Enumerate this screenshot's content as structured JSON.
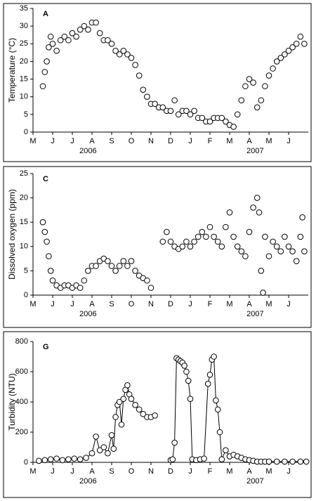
{
  "chart_data": [
    {
      "type": "line",
      "line": false,
      "panel_label": "A",
      "y_label": "Temperature (°C)",
      "x": [
        0.5,
        0.6,
        0.7,
        0.8,
        0.9,
        1.0,
        1.2,
        1.4,
        1.6,
        1.8,
        2.0,
        2.2,
        2.4,
        2.6,
        2.8,
        3.0,
        3.2,
        3.4,
        3.6,
        3.8,
        4.0,
        4.2,
        4.4,
        4.6,
        4.8,
        5.0,
        5.2,
        5.4,
        5.6,
        5.8,
        6.0,
        6.2,
        6.4,
        6.6,
        6.8,
        7.0,
        7.2,
        7.4,
        7.6,
        7.8,
        8.0,
        8.2,
        8.4,
        8.6,
        8.8,
        9.0,
        9.2,
        9.4,
        9.6,
        9.8,
        10.0,
        10.2,
        10.4,
        10.6,
        10.8,
        11.0,
        11.2,
        11.4,
        11.6,
        11.8,
        12.0,
        12.2,
        12.4,
        12.6,
        12.8,
        13.0,
        13.2,
        13.4,
        13.6,
        13.8
      ],
      "values": [
        13,
        17,
        20,
        24,
        27,
        25,
        23,
        26,
        27,
        26,
        28,
        27,
        29,
        30,
        29,
        31,
        31,
        28,
        26,
        26,
        25,
        23,
        22,
        23,
        22,
        21,
        19,
        16,
        12,
        10,
        8,
        8,
        7,
        7,
        6,
        6,
        9,
        5,
        6,
        6,
        5,
        6,
        4,
        4,
        3,
        3,
        4,
        4,
        4,
        3,
        2,
        1.5,
        5,
        9,
        13,
        15,
        14,
        7,
        9,
        13,
        16,
        18,
        20,
        21,
        22,
        23,
        24,
        25,
        27,
        25
      ],
      "xlim": [
        0,
        14
      ],
      "xticks": [
        {
          "value": 0,
          "label": "M"
        },
        {
          "value": 1,
          "label": "J"
        },
        {
          "value": 2,
          "label": "J"
        },
        {
          "value": 3,
          "label": "A"
        },
        {
          "value": 4,
          "label": "S"
        },
        {
          "value": 5,
          "label": "O"
        },
        {
          "value": 6,
          "label": "N"
        },
        {
          "value": 7,
          "label": "D"
        },
        {
          "value": 8,
          "label": "J"
        },
        {
          "value": 9,
          "label": "F"
        },
        {
          "value": 10,
          "label": "M"
        },
        {
          "value": 11,
          "label": "A"
        },
        {
          "value": 12,
          "label": "M"
        },
        {
          "value": 13,
          "label": "J"
        }
      ],
      "ylim": [
        0,
        35
      ],
      "yticks": [
        0,
        5,
        10,
        15,
        20,
        25,
        30,
        35
      ],
      "years": [
        "2006",
        "2007"
      ]
    },
    {
      "type": "line",
      "line": false,
      "panel_label": "C",
      "y_label": "Dissolved oxygen (ppm)",
      "x": [
        0.5,
        0.6,
        0.7,
        0.8,
        0.9,
        1.0,
        1.2,
        1.4,
        1.6,
        1.8,
        2.0,
        2.2,
        2.4,
        2.6,
        2.8,
        3.0,
        3.2,
        3.4,
        3.6,
        3.8,
        4.0,
        4.2,
        4.4,
        4.6,
        4.8,
        5.0,
        5.2,
        5.4,
        5.6,
        5.8,
        6.0,
        6.6,
        6.8,
        7.0,
        7.2,
        7.4,
        7.6,
        7.8,
        8.0,
        8.2,
        8.4,
        8.6,
        8.8,
        9.0,
        9.2,
        9.4,
        9.6,
        9.8,
        10.0,
        10.2,
        10.4,
        10.6,
        10.8,
        11.0,
        11.2,
        11.4,
        11.5,
        11.6,
        11.7,
        11.8,
        12.0,
        12.2,
        12.4,
        12.6,
        12.8,
        13.0,
        13.2,
        13.4,
        13.6,
        13.7,
        13.8
      ],
      "values": [
        15,
        13,
        11,
        8,
        5,
        3,
        2,
        1.5,
        2,
        2,
        1.5,
        2,
        1.5,
        3,
        5,
        6,
        6,
        7,
        7.5,
        7,
        6,
        5,
        6,
        7,
        6,
        7,
        5,
        4,
        3.5,
        3,
        1.5,
        11,
        13,
        11,
        10,
        9.5,
        10,
        11,
        10,
        11,
        12,
        13,
        12,
        14,
        12,
        11,
        10,
        14,
        17,
        12,
        10,
        9,
        8,
        13,
        18,
        20,
        17,
        5,
        0.5,
        12,
        8,
        11,
        10,
        9,
        12,
        10,
        9,
        7,
        12,
        16,
        9
      ],
      "xlim": [
        0,
        14
      ],
      "xticks": [
        {
          "value": 0,
          "label": "M"
        },
        {
          "value": 1,
          "label": "J"
        },
        {
          "value": 2,
          "label": "J"
        },
        {
          "value": 3,
          "label": "A"
        },
        {
          "value": 4,
          "label": "S"
        },
        {
          "value": 5,
          "label": "O"
        },
        {
          "value": 6,
          "label": "N"
        },
        {
          "value": 7,
          "label": "D"
        },
        {
          "value": 8,
          "label": "J"
        },
        {
          "value": 9,
          "label": "F"
        },
        {
          "value": 10,
          "label": "M"
        },
        {
          "value": 11,
          "label": "A"
        },
        {
          "value": 12,
          "label": "M"
        },
        {
          "value": 13,
          "label": "J"
        }
      ],
      "ylim": [
        0,
        25
      ],
      "yticks": [
        0,
        5,
        10,
        15,
        20,
        25
      ],
      "years": [
        "2006",
        "2007"
      ]
    },
    {
      "type": "line",
      "line": true,
      "panel_label": "G",
      "y_label": "Turbidity (NTU)",
      "x": [
        0.3,
        0.6,
        0.9,
        1.2,
        1.5,
        1.8,
        2.1,
        2.4,
        2.7,
        3.0,
        3.2,
        3.4,
        3.6,
        3.8,
        4.0,
        4.1,
        4.2,
        4.3,
        4.4,
        4.5,
        4.6,
        4.7,
        4.8,
        4.9,
        5.0,
        5.2,
        5.4,
        5.6,
        5.8,
        6.0,
        6.2,
        6.6,
        7.0,
        7.1,
        7.2,
        7.3,
        7.4,
        7.5,
        7.6,
        7.7,
        7.8,
        7.9,
        8.0,
        8.1,
        8.3,
        8.5,
        8.7,
        8.9,
        9.0,
        9.1,
        9.2,
        9.3,
        9.4,
        9.5,
        9.6,
        9.8,
        10.0,
        10.2,
        10.4,
        10.6,
        10.8,
        11.0,
        11.2,
        11.4,
        11.6,
        11.8,
        12.0,
        12.4,
        12.8,
        13.2,
        13.6,
        13.9
      ],
      "values": [
        10,
        15,
        20,
        25,
        15,
        20,
        25,
        20,
        30,
        60,
        170,
        80,
        100,
        60,
        180,
        90,
        300,
        380,
        400,
        250,
        420,
        480,
        510,
        450,
        420,
        380,
        350,
        320,
        300,
        300,
        310,
        null,
        15,
        20,
        130,
        690,
        680,
        670,
        660,
        640,
        600,
        540,
        420,
        20,
        15,
        20,
        25,
        520,
        580,
        680,
        700,
        410,
        350,
        200,
        20,
        80,
        40,
        50,
        40,
        30,
        20,
        15,
        10,
        5,
        5,
        5,
        5,
        5,
        5,
        5,
        5,
        5
      ],
      "xlim": [
        0,
        14
      ],
      "xticks": [
        {
          "value": 0,
          "label": "M"
        },
        {
          "value": 1,
          "label": "J"
        },
        {
          "value": 2,
          "label": "J"
        },
        {
          "value": 3,
          "label": "A"
        },
        {
          "value": 4,
          "label": "S"
        },
        {
          "value": 5,
          "label": "O"
        },
        {
          "value": 6,
          "label": "N"
        },
        {
          "value": 7,
          "label": "D"
        },
        {
          "value": 8,
          "label": "J"
        },
        {
          "value": 9,
          "label": "F"
        },
        {
          "value": 10,
          "label": "M"
        },
        {
          "value": 11,
          "label": "A"
        },
        {
          "value": 12,
          "label": "M"
        },
        {
          "value": 13,
          "label": "J"
        }
      ],
      "ylim": [
        0,
        800
      ],
      "yticks": [
        0,
        200,
        400,
        600,
        800
      ],
      "years": [
        "2006",
        "2007"
      ]
    }
  ]
}
